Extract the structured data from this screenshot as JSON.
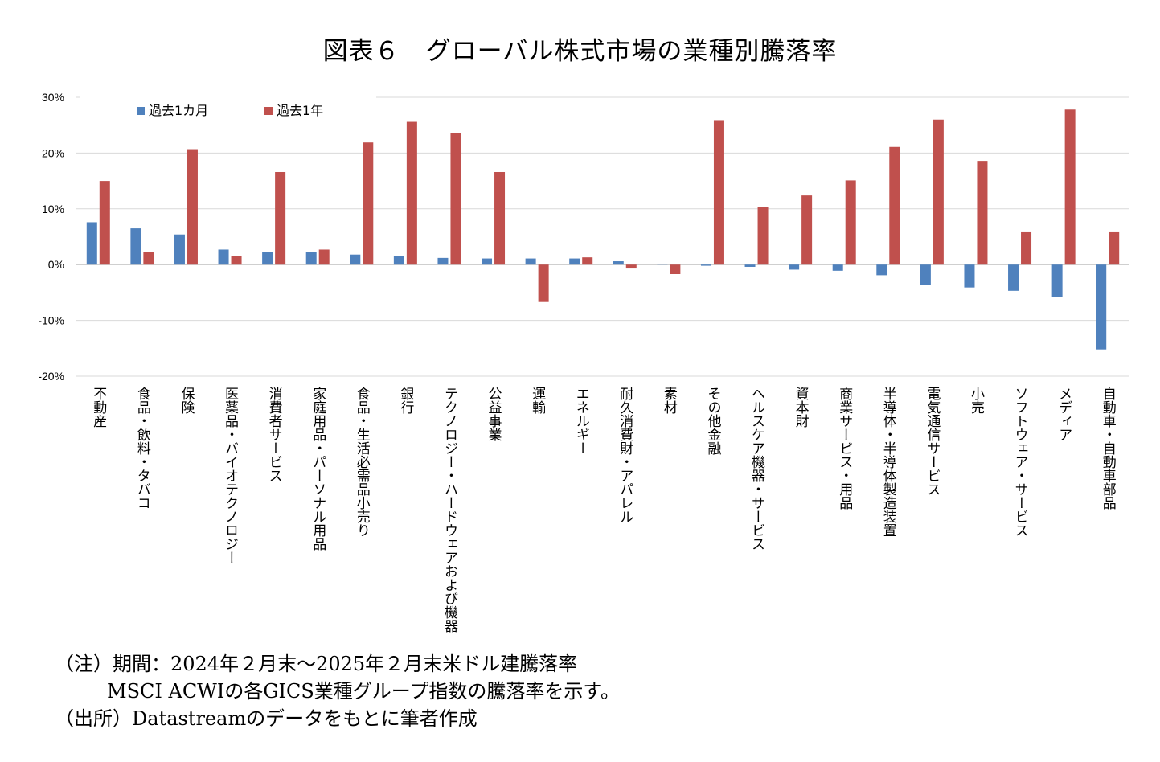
{
  "title": "図表６　グローバル株式市場の業種別騰落率",
  "chart_data": {
    "type": "bar",
    "ylim": [
      -20,
      30
    ],
    "yticks": [
      30,
      20,
      10,
      0,
      -10,
      -20
    ],
    "ytick_labels": [
      "30%",
      "20%",
      "10%",
      "0%",
      "-10%",
      "-20%"
    ],
    "grid": true,
    "legend_position": "top-left",
    "categories": [
      "不動産",
      "食品・飲料・タバコ",
      "保険",
      "医薬品・バイオテクノロジー",
      "消費者サービス",
      "家庭用品・パーソナル用品",
      "食品・生活必需品小売り",
      "銀行",
      "テクノロジー・ハードウェアおよび機器",
      "公益事業",
      "運輸",
      "エネルギー",
      "耐久消費財・アパレル",
      "素材",
      "その他金融",
      "ヘルスケア機器・サービス",
      "資本財",
      "商業サービス・用品",
      "半導体・半導体製造装置",
      "電気通信サービス",
      "小売",
      "ソフトウェア・サービス",
      "メディア",
      "自動車・自動車部品"
    ],
    "series": [
      {
        "name": "過去1カ月",
        "color": "#4f81bd",
        "values": [
          7.6,
          6.5,
          5.4,
          2.7,
          2.2,
          2.2,
          1.8,
          1.5,
          1.2,
          1.1,
          1.1,
          1.1,
          0.6,
          0.1,
          -0.2,
          -0.4,
          -0.9,
          -1.1,
          -1.9,
          -3.7,
          -4.1,
          -4.7,
          -5.8,
          -15.2
        ]
      },
      {
        "name": "過去1年",
        "color": "#c0504d",
        "values": [
          15.0,
          2.2,
          20.7,
          1.5,
          16.6,
          2.7,
          21.9,
          25.6,
          23.6,
          16.6,
          -6.7,
          1.3,
          -0.7,
          -1.7,
          25.9,
          10.4,
          12.4,
          15.1,
          21.1,
          26.0,
          18.6,
          5.8,
          27.8,
          5.8
        ]
      }
    ]
  },
  "notes": {
    "line1": "（注）期間：2024年２月末～2025年２月末米ドル建騰落率",
    "line2": "MSCI ACWIの各GICS業種グループ指数の騰落率を示す。",
    "line3": "（出所）Datastreamのデータをもとに筆者作成"
  }
}
